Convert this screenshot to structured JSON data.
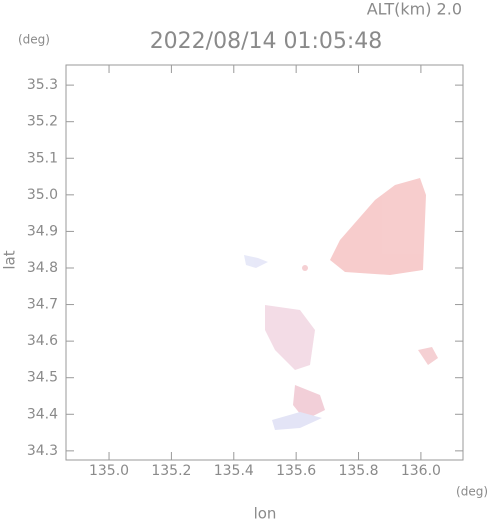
{
  "chart_data": {
    "type": "map",
    "title": "2022/08/14 01:05:48",
    "altitude_label": "ALT(km) 2.0",
    "y_unit": "(deg)",
    "x_unit": "(deg)",
    "xlabel": "lon",
    "ylabel": "lat",
    "xlim": [
      134.862,
      136.135
    ],
    "ylim": [
      34.275,
      35.355
    ],
    "xticks": [
      {
        "value": 135,
        "label": "135.0"
      },
      135.2,
      135.4,
      135.6,
      135.8,
      {
        "value": 136,
        "label": "136.0"
      }
    ],
    "yticks": [
      34.3,
      34.4,
      34.5,
      34.6,
      34.7,
      34.8,
      34.9,
      {
        "value": 35,
        "label": "35.0"
      },
      35.1,
      35.2,
      35.3
    ]
  }
}
